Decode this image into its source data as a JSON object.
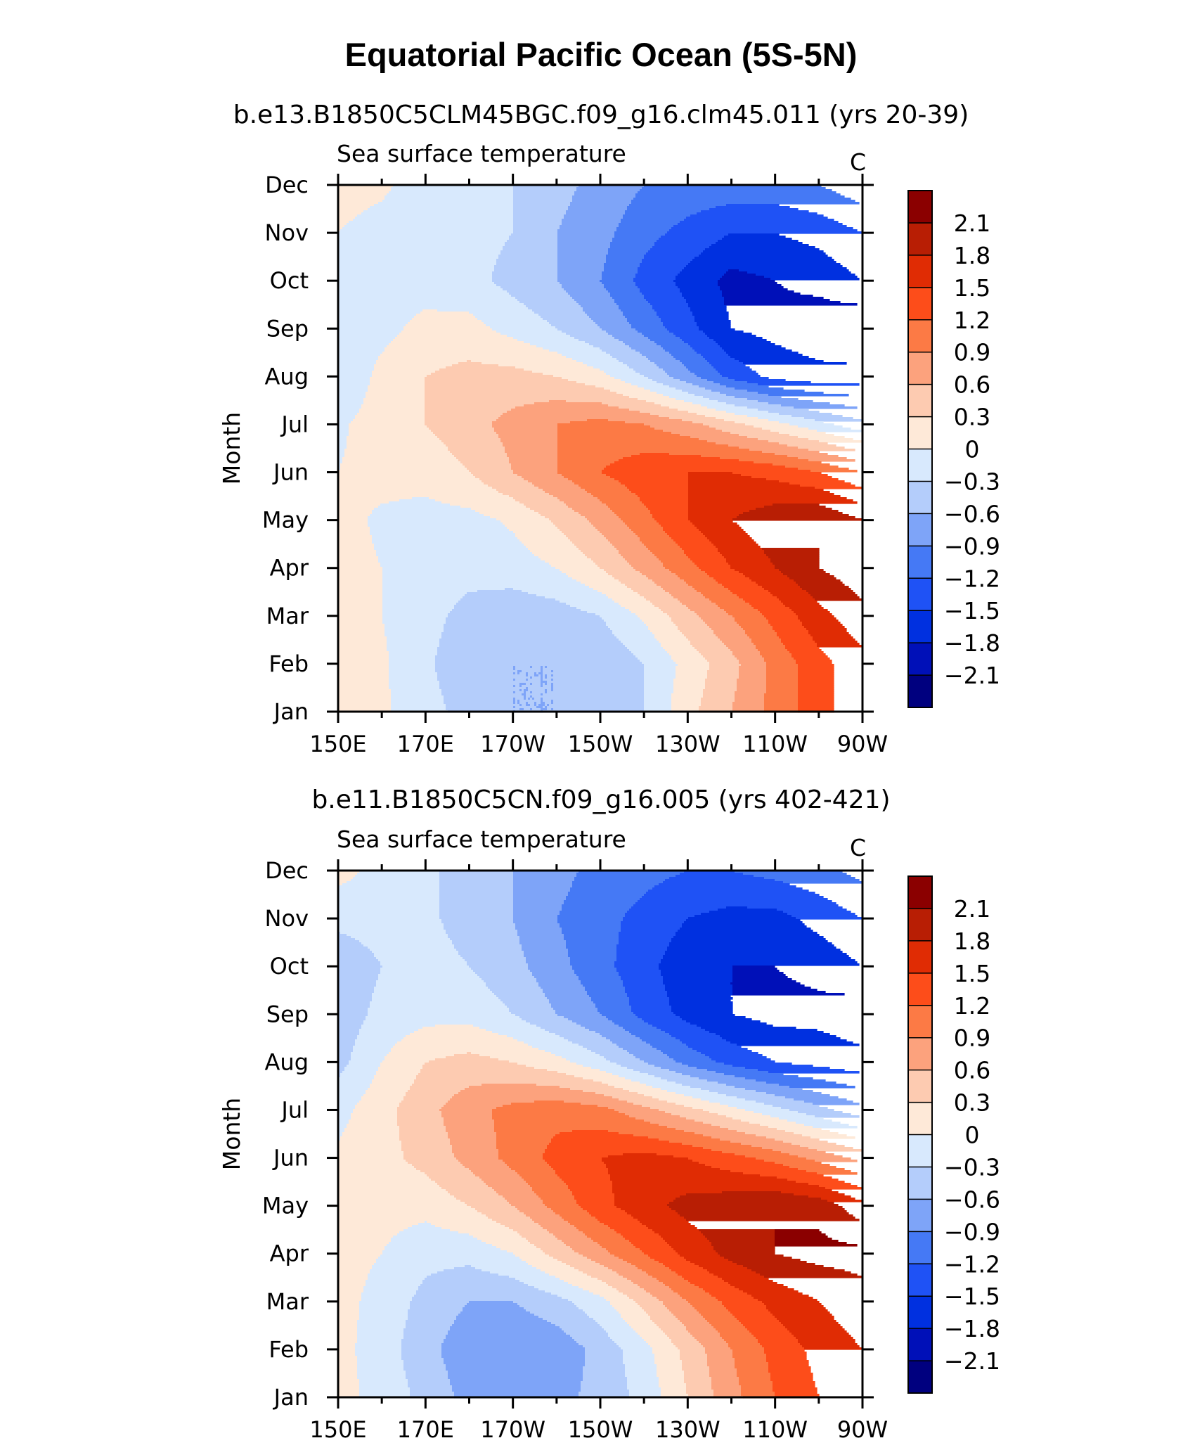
{
  "title": "Equatorial Pacific Ocean (5S-5N)",
  "colors": [
    "#00007f",
    "#0010b8",
    "#0030e0",
    "#1f52f5",
    "#4579f5",
    "#7ea4f8",
    "#b4cdfb",
    "#d8e9fd",
    "#fee9d8",
    "#fdcbb1",
    "#fca27d",
    "#fc7a45",
    "#fd4d1a",
    "#e02c04",
    "#b81e04",
    "#8b0000"
  ],
  "chart_data": [
    {
      "type": "contourf",
      "subtitle": "b.e13.B1850C5CLM45BGC.f09_g16.clm45.011 (yrs 20-39)",
      "left_label": "Sea surface temperature",
      "right_label": "C",
      "ylabel": "Month",
      "x_ticks": [
        "150E",
        "170E",
        "170W",
        "150W",
        "130W",
        "110W",
        "90W"
      ],
      "x_range": [
        150,
        270
      ],
      "y_ticks": [
        "Jan",
        "Feb",
        "Mar",
        "Apr",
        "May",
        "Jun",
        "Jul",
        "Aug",
        "Sep",
        "Oct",
        "Nov",
        "Dec"
      ],
      "levels": [
        -2.1,
        -1.8,
        -1.5,
        -1.2,
        -0.9,
        -0.6,
        -0.3,
        0,
        0.3,
        0.6,
        0.9,
        1.2,
        1.5,
        1.8,
        2.1
      ],
      "colorbar_labels": [
        "2.1",
        "1.8",
        "1.5",
        "1.2",
        "0.9",
        "0.6",
        "0.3",
        "0",
        "−0.3",
        "−0.6",
        "−0.9",
        "−1.2",
        "−1.5",
        "−1.8",
        "−2.1"
      ],
      "x": [
        150,
        160,
        170,
        180,
        190,
        200,
        210,
        220,
        230,
        240,
        250,
        260,
        270
      ],
      "months": [
        "Jan",
        "Feb",
        "Mar",
        "Apr",
        "May",
        "Jun",
        "Jul",
        "Aug",
        "Sep",
        "Oct",
        "Nov",
        "Dec"
      ],
      "sst_anomaly": [
        [
          0.1,
          0.05,
          -0.2,
          -0.4,
          -0.6,
          -0.6,
          -0.45,
          -0.3,
          0.2,
          0.6,
          1.0,
          1.4,
          1.7
        ],
        [
          0.1,
          0.05,
          -0.25,
          -0.5,
          -0.6,
          -0.6,
          -0.55,
          -0.3,
          0.1,
          0.5,
          1.0,
          1.4,
          1.7
        ],
        [
          0.1,
          0.0,
          -0.2,
          -0.4,
          -0.5,
          -0.45,
          -0.3,
          0.05,
          0.5,
          0.9,
          1.3,
          1.7,
          2.0
        ],
        [
          0.1,
          0.0,
          -0.1,
          -0.2,
          -0.15,
          0.0,
          0.3,
          0.7,
          1.1,
          1.5,
          1.8,
          2.1,
          2.3
        ],
        [
          0.1,
          -0.05,
          -0.1,
          -0.1,
          0.05,
          0.35,
          0.7,
          1.1,
          1.5,
          1.8,
          2.0,
          2.1,
          1.8
        ],
        [
          0.0,
          0.1,
          0.1,
          0.3,
          0.6,
          0.9,
          1.2,
          1.4,
          1.5,
          1.5,
          1.4,
          1.2,
          0.9
        ],
        [
          -0.05,
          0.15,
          0.3,
          0.5,
          0.7,
          0.9,
          1.0,
          0.9,
          0.7,
          0.4,
          0.1,
          -0.2,
          -0.5
        ],
        [
          -0.3,
          0.1,
          0.3,
          0.4,
          0.4,
          0.3,
          0.1,
          -0.3,
          -0.8,
          -1.3,
          -1.6,
          -1.7,
          -1.7
        ],
        [
          -0.25,
          -0.1,
          0.1,
          0.1,
          -0.1,
          -0.3,
          -0.6,
          -1.0,
          -1.4,
          -1.8,
          -1.9,
          -2.0,
          -2.1
        ],
        [
          -0.1,
          -0.1,
          -0.15,
          -0.2,
          -0.4,
          -0.6,
          -0.9,
          -1.3,
          -1.6,
          -1.9,
          -1.8,
          -1.7,
          -1.5
        ],
        [
          0.0,
          -0.1,
          -0.15,
          -0.2,
          -0.3,
          -0.6,
          -0.8,
          -1.1,
          -1.3,
          -1.5,
          -1.5,
          -1.4,
          -1.2
        ],
        [
          0.1,
          0.05,
          -0.15,
          -0.2,
          -0.3,
          -0.5,
          -0.7,
          -0.9,
          -1.0,
          -1.0,
          -1.0,
          -0.9,
          -0.7
        ]
      ]
    },
    {
      "type": "contourf",
      "subtitle": "b.e11.B1850C5CN.f09_g16.005 (yrs 402-421)",
      "left_label": "Sea surface temperature",
      "right_label": "C",
      "ylabel": "Month",
      "x_ticks": [
        "150E",
        "170E",
        "170W",
        "150W",
        "130W",
        "110W",
        "90W"
      ],
      "x_range": [
        150,
        270
      ],
      "y_ticks": [
        "Jan",
        "Feb",
        "Mar",
        "Apr",
        "May",
        "Jun",
        "Jul",
        "Aug",
        "Sep",
        "Oct",
        "Nov",
        "Dec"
      ],
      "levels": [
        -2.1,
        -1.8,
        -1.5,
        -1.2,
        -0.9,
        -0.6,
        -0.3,
        0,
        0.3,
        0.6,
        0.9,
        1.2,
        1.5,
        1.8,
        2.1
      ],
      "colorbar_labels": [
        "2.1",
        "1.8",
        "1.5",
        "1.2",
        "0.9",
        "0.6",
        "0.3",
        "0",
        "−0.3",
        "−0.6",
        "−0.9",
        "−1.2",
        "−1.5",
        "−1.8",
        "−2.1"
      ],
      "x": [
        150,
        160,
        170,
        180,
        190,
        200,
        210,
        220,
        230,
        240,
        250,
        260,
        270
      ],
      "months": [
        "Jan",
        "Feb",
        "Mar",
        "Apr",
        "May",
        "Jun",
        "Jul",
        "Aug",
        "Sep",
        "Oct",
        "Nov",
        "Dec"
      ],
      "sst_anomaly": [
        [
          0.1,
          -0.1,
          -0.4,
          -0.7,
          -0.8,
          -0.7,
          -0.5,
          -0.2,
          0.3,
          0.8,
          1.2,
          1.5,
          1.7
        ],
        [
          0.1,
          -0.15,
          -0.5,
          -0.8,
          -0.9,
          -0.8,
          -0.5,
          -0.1,
          0.4,
          0.9,
          1.3,
          1.6,
          1.8
        ],
        [
          0.1,
          -0.1,
          -0.4,
          -0.6,
          -0.6,
          -0.4,
          -0.1,
          0.4,
          0.9,
          1.3,
          1.6,
          1.8,
          2.0
        ],
        [
          0.1,
          0.0,
          -0.2,
          -0.2,
          0.0,
          0.4,
          0.8,
          1.2,
          1.6,
          1.9,
          2.1,
          2.2,
          2.2
        ],
        [
          0.15,
          0.1,
          0.1,
          0.3,
          0.6,
          1.0,
          1.4,
          1.7,
          1.9,
          2.0,
          2.1,
          2.0,
          1.6
        ],
        [
          0.05,
          0.2,
          0.4,
          0.7,
          1.0,
          1.3,
          1.5,
          1.6,
          1.5,
          1.3,
          1.1,
          0.8,
          0.5
        ],
        [
          -0.1,
          0.2,
          0.5,
          0.8,
          1.0,
          1.1,
          1.0,
          0.7,
          0.4,
          0.1,
          -0.2,
          -0.5,
          -0.8
        ],
        [
          -0.4,
          0.0,
          0.3,
          0.4,
          0.3,
          0.1,
          -0.2,
          -0.6,
          -1.0,
          -1.3,
          -1.5,
          -1.6,
          -1.7
        ],
        [
          -0.5,
          -0.2,
          -0.1,
          -0.1,
          -0.3,
          -0.6,
          -0.9,
          -1.3,
          -1.6,
          -1.8,
          -1.9,
          -1.9,
          -2.0
        ],
        [
          -0.55,
          -0.3,
          -0.2,
          -0.3,
          -0.5,
          -0.8,
          -1.1,
          -1.4,
          -1.7,
          -1.8,
          -1.8,
          -1.7,
          -1.5
        ],
        [
          -0.2,
          -0.15,
          -0.25,
          -0.4,
          -0.6,
          -0.9,
          -1.1,
          -1.3,
          -1.5,
          -1.6,
          -1.6,
          -1.4,
          -1.2
        ],
        [
          0.1,
          -0.1,
          -0.25,
          -0.4,
          -0.6,
          -0.8,
          -1.0,
          -1.1,
          -1.2,
          -1.2,
          -1.1,
          -1.0,
          -0.8
        ]
      ]
    }
  ]
}
